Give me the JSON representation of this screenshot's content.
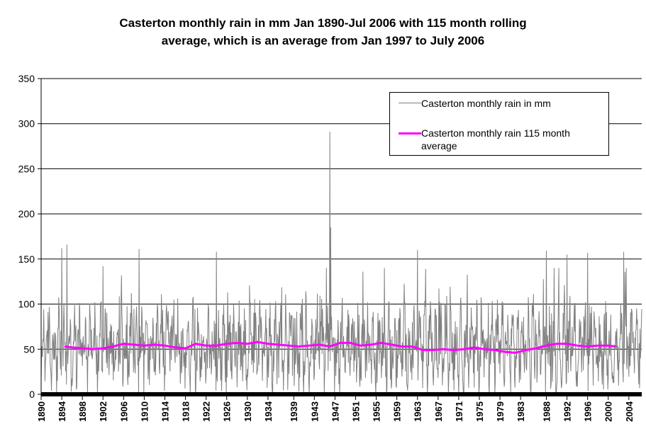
{
  "title": {
    "line1": "Casterton  monthly rain in mm Jan 1890-Jul 2006 with 115 month rolling",
    "line2": "average, which is an average from Jan 1997 to July 2006"
  },
  "legend": {
    "placement": "top-right",
    "entries": [
      {
        "label": "Casterton monthly rain in mm",
        "color": "#808080"
      },
      {
        "label": "Casterton monthly rain 115 month average",
        "color": "#ff00ff"
      }
    ]
  },
  "chart_data": {
    "type": "line",
    "title": "Casterton  monthly rain in mm Jan 1890-Jul 2006 with 115 month rolling average, which is an average from Jan 1997 to July 2006",
    "xlabel": "",
    "ylabel": "",
    "ylim": [
      0,
      350
    ],
    "yticks": [
      0,
      50,
      100,
      150,
      200,
      250,
      300,
      350
    ],
    "xticks": [
      "1890",
      "1894",
      "1898",
      "1902",
      "1906",
      "1910",
      "1914",
      "1918",
      "1922",
      "1926",
      "1930",
      "1934",
      "1939",
      "1943",
      "1947",
      "1951",
      "1955",
      "1959",
      "1963",
      "1967",
      "1971",
      "1975",
      "1979",
      "1983",
      "1988",
      "1992",
      "1996",
      "2000",
      "2004"
    ],
    "grid": true,
    "x_range": [
      "Jan 1890",
      "Jul 2006"
    ],
    "series": [
      {
        "name": "Casterton monthly rain in mm",
        "color": "#808080",
        "note_points": [
          {
            "year": 1890,
            "value": 15
          },
          {
            "year": 1894,
            "value": 162
          },
          {
            "year": 1895,
            "value": 166
          },
          {
            "year": 1902,
            "value": 142
          },
          {
            "year": 1909,
            "value": 161
          },
          {
            "year": 1924,
            "value": 158
          },
          {
            "year": 1946,
            "value": 291
          },
          {
            "year": 1946.2,
            "value": 185
          },
          {
            "year": 1963,
            "value": 160
          },
          {
            "year": 1988,
            "value": 159
          },
          {
            "year": 1992,
            "value": 155
          },
          {
            "year": 1996,
            "value": 157
          },
          {
            "year": 2003,
            "value": 158
          }
        ]
      },
      {
        "name": "Casterton monthly rain 115 month average",
        "color": "#ff00ff",
        "x": [
          1894.5,
          1896,
          1898,
          1900,
          1902,
          1904,
          1906,
          1908,
          1910,
          1912,
          1914,
          1916,
          1918,
          1920,
          1922,
          1924,
          1926,
          1928,
          1930,
          1932,
          1934,
          1936,
          1938,
          1940,
          1942,
          1944,
          1946,
          1948,
          1950,
          1952,
          1954,
          1956,
          1958,
          1960,
          1962,
          1964,
          1966,
          1968,
          1970,
          1972,
          1974,
          1976,
          1978,
          1980,
          1982,
          1984,
          1986,
          1988,
          1990,
          1992,
          1994,
          1996,
          1998,
          2000,
          2001.5
        ],
        "values": [
          53,
          52,
          51,
          50,
          51,
          53,
          56,
          55,
          54,
          55,
          54,
          52,
          51,
          56,
          54,
          54,
          56,
          57,
          56,
          58,
          56,
          55,
          54,
          53,
          54,
          55,
          53,
          57,
          57,
          54,
          55,
          57,
          55,
          53,
          53,
          49,
          49,
          50,
          49,
          50,
          52,
          50,
          49,
          47,
          46,
          49,
          51,
          54,
          56,
          56,
          54,
          53,
          54,
          54,
          53
        ]
      }
    ]
  }
}
